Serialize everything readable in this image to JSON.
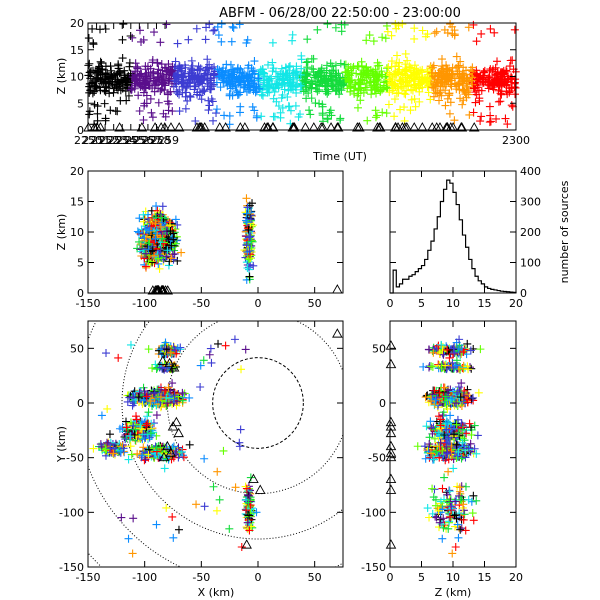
{
  "title": "ABFM - 06/28/00 22:50:00 - 23:00:00",
  "chart_data": [
    {
      "id": "time_height",
      "type": "scatter",
      "xlabel": "Time (UT)",
      "ylabel": "Z (km)",
      "xlim": [
        2250,
        2300
      ],
      "ylim": [
        0,
        20
      ],
      "xticks": [
        "2250",
        "2251",
        "2252",
        "2253",
        "2254",
        "2255",
        "2256",
        "2257",
        "2258",
        "2259",
        "2300"
      ],
      "yticks": [
        "0",
        "5",
        "10",
        "15",
        "20"
      ],
      "marker": "plus",
      "color_by": "time",
      "color_scale": [
        "#000000",
        "#5a0f8c",
        "#3c3cd2",
        "#0a8cff",
        "#12e6e6",
        "#14dc3c",
        "#64ff00",
        "#ffff00",
        "#ff9600",
        "#ff0000"
      ],
      "station_marker": "triangle"
    },
    {
      "id": "x_height",
      "type": "scatter",
      "xlabel": "",
      "ylabel": "Z (km)",
      "xlim": [
        -150,
        75
      ],
      "ylim": [
        0,
        20
      ],
      "xticks": [
        "-150",
        "-100",
        "-50",
        "0",
        "50"
      ],
      "yticks": [
        "0",
        "5",
        "10",
        "15",
        "20"
      ],
      "marker": "plus"
    },
    {
      "id": "height_histogram",
      "type": "line",
      "xlabel": "",
      "ylabel": "number of sources",
      "xlim": [
        0,
        20
      ],
      "ylim": [
        0,
        400
      ],
      "xticks": [
        "0",
        "5",
        "10",
        "15",
        "20"
      ],
      "yticks": [
        "0",
        "100",
        "200",
        "300",
        "400"
      ],
      "x": [
        0,
        0.5,
        1,
        1.5,
        2,
        2.5,
        3,
        3.5,
        4,
        4.5,
        5,
        5.5,
        6,
        6.5,
        7,
        7.5,
        8,
        8.5,
        9,
        9.5,
        10,
        10.5,
        11,
        11.5,
        12,
        12.5,
        13,
        13.5,
        14,
        14.5,
        15,
        15.5,
        16,
        16.5,
        17,
        17.5,
        18,
        18.5,
        19,
        19.5,
        20
      ],
      "values": [
        0,
        75,
        20,
        30,
        45,
        45,
        55,
        60,
        70,
        80,
        90,
        110,
        140,
        170,
        210,
        250,
        300,
        340,
        370,
        360,
        330,
        290,
        240,
        190,
        150,
        110,
        80,
        55,
        40,
        30,
        20,
        15,
        12,
        10,
        8,
        6,
        5,
        4,
        3,
        2,
        0
      ]
    },
    {
      "id": "plan_view",
      "type": "scatter",
      "xlabel": "X (km)",
      "ylabel": "Y (km)",
      "xlim": [
        -150,
        75
      ],
      "ylim": [
        -150,
        75
      ],
      "xticks": [
        "-150",
        "-100",
        "-50",
        "0",
        "50"
      ],
      "yticks": [
        "-150",
        "-100",
        "-50",
        "0",
        "50"
      ],
      "range_rings_km": [
        40,
        80,
        120,
        160,
        200
      ],
      "ring_center": [
        0,
        0
      ],
      "marker": "plus"
    },
    {
      "id": "height_y",
      "type": "scatter",
      "xlabel": "Z (km)",
      "ylabel": "",
      "xlim": [
        0,
        20
      ],
      "ylim": [
        -150,
        75
      ],
      "xticks": [
        "0",
        "5",
        "10",
        "15",
        "20"
      ],
      "yticks": [
        "-150",
        "-100",
        "-50",
        "0",
        "50"
      ],
      "marker": "plus"
    }
  ],
  "colors": {
    "axis": "#000000",
    "background": "#ffffff",
    "histogram": "#000000",
    "ring": "#000000"
  },
  "station_icon": "triangle-icon"
}
